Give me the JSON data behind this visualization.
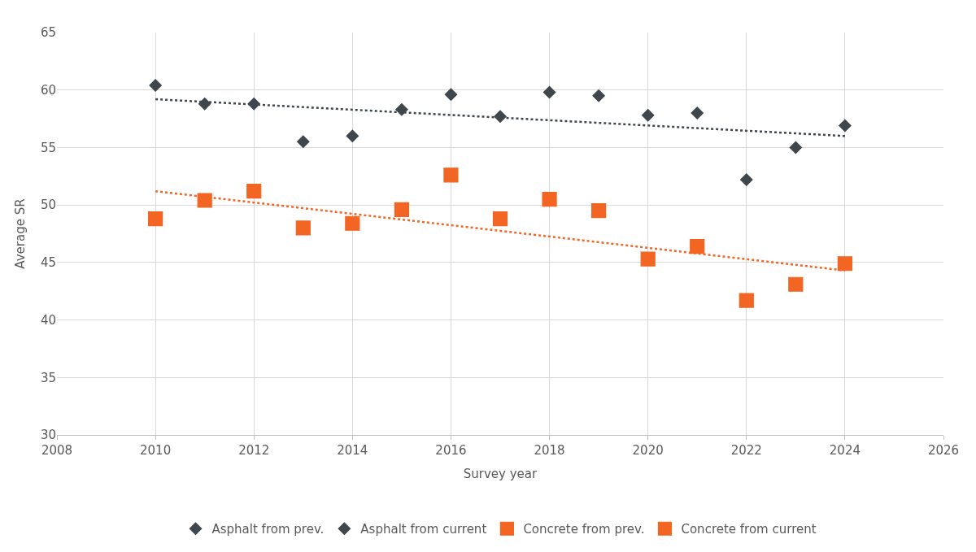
{
  "chart_data": {
    "type": "scatter",
    "xlabel": "Survey year",
    "ylabel": "Average SR",
    "xlim": [
      2008,
      2026
    ],
    "xticks": [
      2008,
      2010,
      2012,
      2014,
      2016,
      2018,
      2020,
      2022,
      2024,
      2026
    ],
    "ylim": [
      30,
      65
    ],
    "yticks": [
      30,
      35,
      40,
      45,
      50,
      55,
      60,
      65
    ],
    "grid": true,
    "legend": "bottom",
    "series": [
      {
        "name": "Asphalt from prev.",
        "color": "#3f474c",
        "marker": "diamond",
        "x": [
          2010,
          2011,
          2012,
          2013,
          2014
        ],
        "values": [
          60.4,
          58.8,
          58.8,
          55.5,
          56.0
        ]
      },
      {
        "name": "Asphalt from current",
        "color": "#3f474c",
        "marker": "diamond",
        "x": [
          2015,
          2016,
          2017,
          2018,
          2019,
          2020,
          2021,
          2022,
          2023,
          2024
        ],
        "values": [
          58.3,
          59.6,
          57.7,
          59.8,
          59.5,
          57.8,
          58.0,
          52.2,
          55.0,
          56.9
        ]
      },
      {
        "name": "Concrete from prev.",
        "color": "#f26522",
        "marker": "square",
        "x": [
          2010,
          2011,
          2012,
          2013,
          2014
        ],
        "values": [
          48.8,
          50.4,
          51.2,
          48.0,
          48.4
        ]
      },
      {
        "name": "Concrete from current",
        "color": "#f26522",
        "marker": "square",
        "x": [
          2015,
          2016,
          2017,
          2018,
          2019,
          2020,
          2021,
          2022,
          2023,
          2024
        ],
        "values": [
          49.6,
          52.6,
          48.8,
          50.5,
          49.5,
          45.3,
          46.4,
          41.7,
          43.1,
          44.9
        ]
      },
      {
        "type": "line",
        "color": "#3f474c",
        "line_style": "dotted",
        "x": [
          2010,
          2024
        ],
        "values": [
          59.2,
          56.0
        ]
      },
      {
        "type": "line",
        "color": "#f26522",
        "line_style": "dotted",
        "x": [
          2010,
          2024
        ],
        "values": [
          51.2,
          44.3
        ]
      }
    ]
  }
}
